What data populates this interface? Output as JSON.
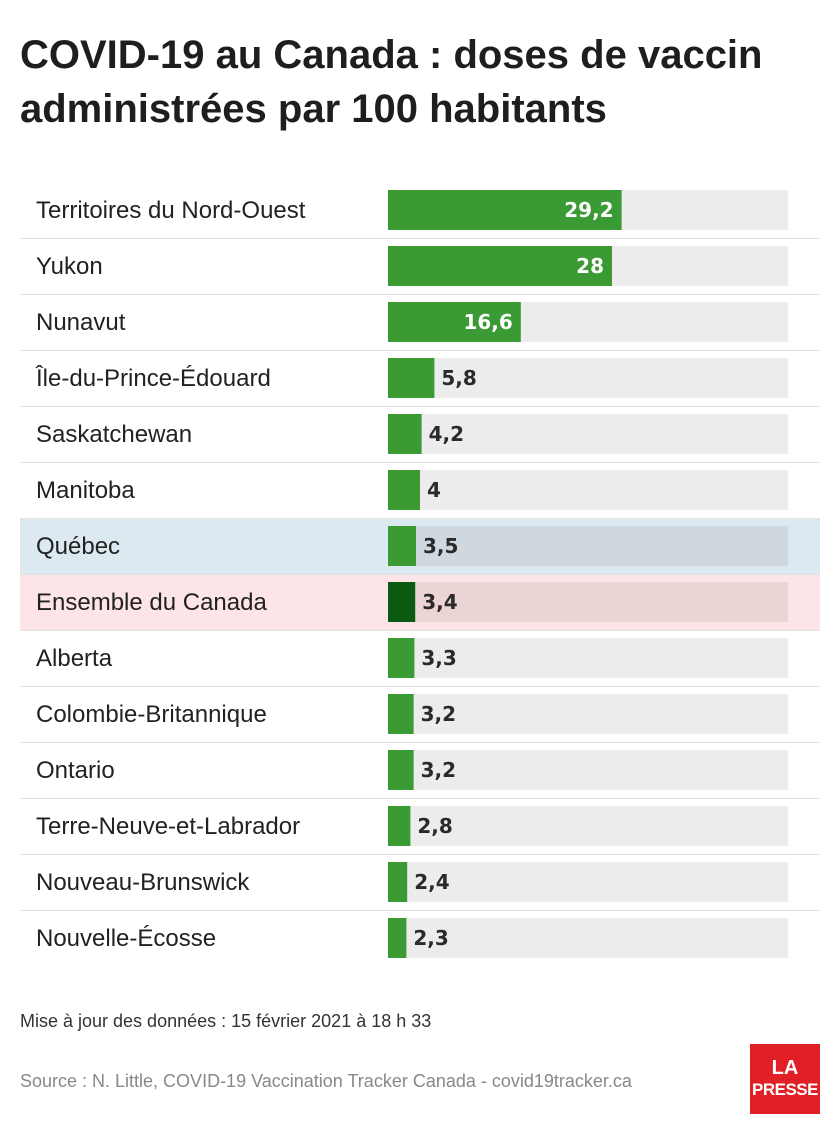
{
  "title": "COVID-19 au Canada : doses de vaccin administrées par 100 habitants",
  "chart_data": {
    "type": "bar",
    "orientation": "horizontal",
    "title": "COVID-19 au Canada : doses de vaccin administrées par 100 habitants",
    "categories": [
      "Territoires du Nord-Ouest",
      "Yukon",
      "Nunavut",
      "Île-du-Prince-Édouard",
      "Saskatchewan",
      "Manitoba",
      "Québec",
      "Ensemble du Canada",
      "Alberta",
      "Colombie-Britannique",
      "Ontario",
      "Terre-Neuve-et-Labrador",
      "Nouveau-Brunswick",
      "Nouvelle-Écosse"
    ],
    "values": [
      29.2,
      28,
      16.6,
      5.8,
      4.2,
      4,
      3.5,
      3.4,
      3.3,
      3.2,
      3.2,
      2.8,
      2.4,
      2.3
    ],
    "value_labels": [
      "29,2",
      "28",
      "16,6",
      "5,8",
      "4,2",
      "4",
      "3,5",
      "3,4",
      "3,3",
      "3,2",
      "3,2",
      "2,8",
      "2,4",
      "2,3"
    ],
    "xlim": [
      0,
      50
    ],
    "highlights": {
      "Québec": "quebec",
      "Ensemble du Canada": "canada"
    },
    "colors": {
      "bar": "#3a9b35",
      "bar_canada": "#0b5a12",
      "track": "#ececec",
      "track_quebec": "#cfd8de",
      "track_canada": "#ecd4d5",
      "row_quebec_bg": "#dce9f0",
      "row_canada_bg": "#fde4e6",
      "separator": "#e2e2e2",
      "label_inside": "#ffffff",
      "label_outside": "#2a2a2a"
    },
    "grid": false,
    "legend": "none"
  },
  "footer": {
    "updated": "Mise à jour des données : 15 février 2021 à 18 h 33",
    "source": "Source : N. Little, COVID-19 Vaccination Tracker Canada - covid19tracker.ca"
  },
  "logo": {
    "line1": "LA",
    "line2": "PRESSE"
  }
}
